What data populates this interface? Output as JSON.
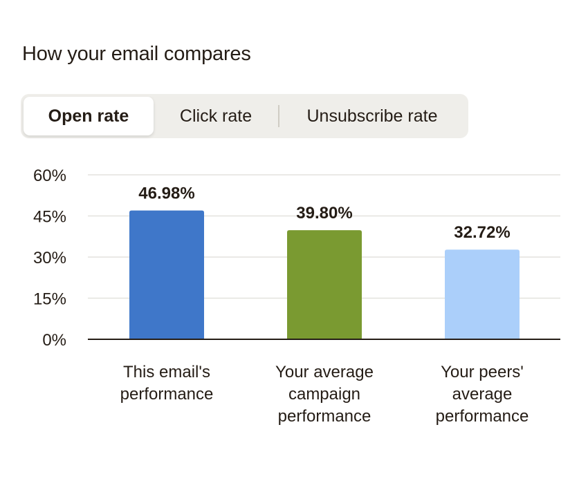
{
  "header": {
    "title": "How your email compares"
  },
  "tabs": [
    {
      "label": "Open rate",
      "active": true
    },
    {
      "label": "Click rate",
      "active": false
    },
    {
      "label": "Unsubscribe rate",
      "active": false
    }
  ],
  "chart_data": {
    "type": "bar",
    "categories": [
      [
        "This email's",
        "performance"
      ],
      [
        "Your average",
        "campaign",
        "performance"
      ],
      [
        "Your peers'",
        "average",
        "performance"
      ]
    ],
    "values": [
      46.98,
      39.8,
      32.72
    ],
    "value_labels": [
      "46.98%",
      "39.80%",
      "32.72%"
    ],
    "colors": [
      "#3f77c9",
      "#7a9a31",
      "#abcffa"
    ],
    "ylim": [
      0,
      60
    ],
    "yticks": [
      0,
      15,
      30,
      45,
      60
    ],
    "ytick_labels": [
      "0%",
      "15%",
      "30%",
      "45%",
      "60%"
    ],
    "grid": true,
    "xlabel": "",
    "ylabel": ""
  }
}
